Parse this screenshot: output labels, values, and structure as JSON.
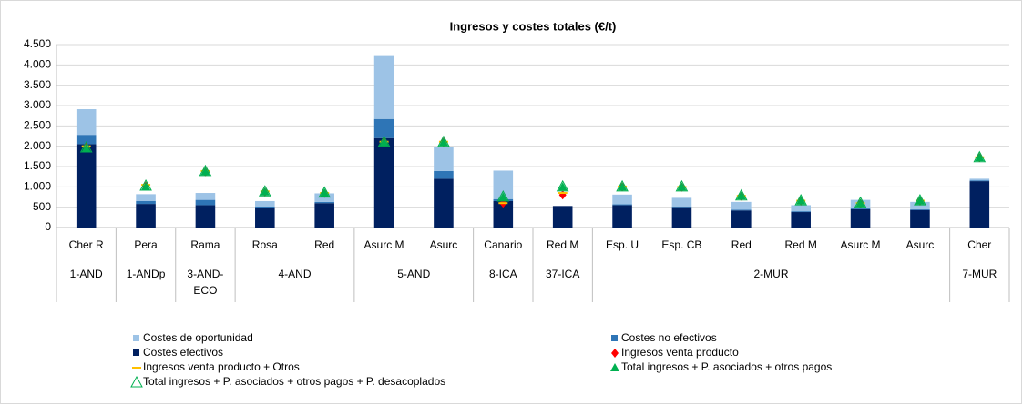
{
  "chart_data": {
    "type": "bar",
    "stacked": true,
    "title": "Ingresos y costes totales (€/t)",
    "categories": [
      "Cher R",
      "Pera",
      "Rama",
      "Rosa",
      "Red",
      "Asurc M",
      "Asurc",
      "Canario",
      "Red M",
      "Esp. U",
      "Esp. CB",
      "Red",
      "Red M",
      "Asurc M",
      "Asurc",
      "Cher"
    ],
    "groups": [
      {
        "label": "1-AND",
        "span": 1
      },
      {
        "label": "1-ANDp",
        "span": 1
      },
      {
        "label": "3-AND-ECO",
        "span": 1
      },
      {
        "label": "4-AND",
        "span": 2
      },
      {
        "label": "5-AND",
        "span": 2
      },
      {
        "label": "8-ICA",
        "span": 1
      },
      {
        "label": "37-ICA",
        "span": 1
      },
      {
        "label": "2-MUR",
        "span": 6
      },
      {
        "label": "7-MUR",
        "span": 1
      }
    ],
    "series": [
      {
        "name": "Costes de oportunidad",
        "kind": "bar",
        "color": "#9dc3e6",
        "values": [
          630,
          170,
          170,
          130,
          210,
          1570,
          590,
          700,
          0,
          240,
          210,
          190,
          150,
          210,
          180,
          40
        ]
      },
      {
        "name": "Costes no efectivos",
        "kind": "bar",
        "color": "#2e75b6",
        "values": [
          230,
          70,
          130,
          40,
          30,
          470,
          190,
          50,
          0,
          20,
          20,
          20,
          20,
          20,
          20,
          20
        ]
      },
      {
        "name": "Costes efectivos",
        "kind": "bar",
        "color": "#002060",
        "values": [
          2050,
          580,
          550,
          480,
          600,
          2200,
          1200,
          650,
          530,
          550,
          500,
          420,
          380,
          450,
          430,
          1140
        ]
      },
      {
        "name": "Ingresos venta producto",
        "kind": "marker",
        "marker": "diamond",
        "color": "#ff0000",
        "values": [
          1980,
          1020,
          1370,
          870,
          840,
          2100,
          2100,
          600,
          800,
          1000,
          990,
          770,
          650,
          590,
          650,
          1720
        ]
      },
      {
        "name": "Ingresos venta producto + Otros",
        "kind": "marker",
        "marker": "dash",
        "color": "#ffc000",
        "values": [
          2000,
          1050,
          1390,
          890,
          850,
          2110,
          2110,
          600,
          850,
          1010,
          1000,
          780,
          660,
          600,
          660,
          1730
        ]
      },
      {
        "name": "Total ingresos + P. asociados + otros pagos",
        "kind": "marker",
        "marker": "triangle",
        "color": "#00b050",
        "values": [
          1950,
          1010,
          1380,
          880,
          850,
          2100,
          2100,
          750,
          1000,
          1000,
          1000,
          780,
          660,
          600,
          660,
          1720
        ]
      },
      {
        "name": "Total ingresos + P. asociados + otros pagos + P. desacoplados",
        "kind": "marker",
        "marker": "open-triangle",
        "color": "#00b050",
        "values": [
          1970,
          1030,
          1390,
          890,
          860,
          2110,
          2110,
          760,
          1010,
          1010,
          1010,
          790,
          670,
          610,
          670,
          1730
        ]
      }
    ],
    "ylim": [
      0,
      4500
    ],
    "yticks": [
      0,
      500,
      {
        "value": 1000,
        "label": "1.000"
      },
      {
        "value": 1500,
        "label": "1.500"
      },
      {
        "value": 2000,
        "label": "2.000"
      },
      {
        "value": 2500,
        "label": "2.500"
      },
      {
        "value": 3000,
        "label": "3.000"
      },
      {
        "value": 3500,
        "label": "3.500"
      },
      {
        "value": 4000,
        "label": "4.000"
      },
      {
        "value": 4500,
        "label": "4.500"
      }
    ],
    "grid": true,
    "legend": "bottom"
  }
}
